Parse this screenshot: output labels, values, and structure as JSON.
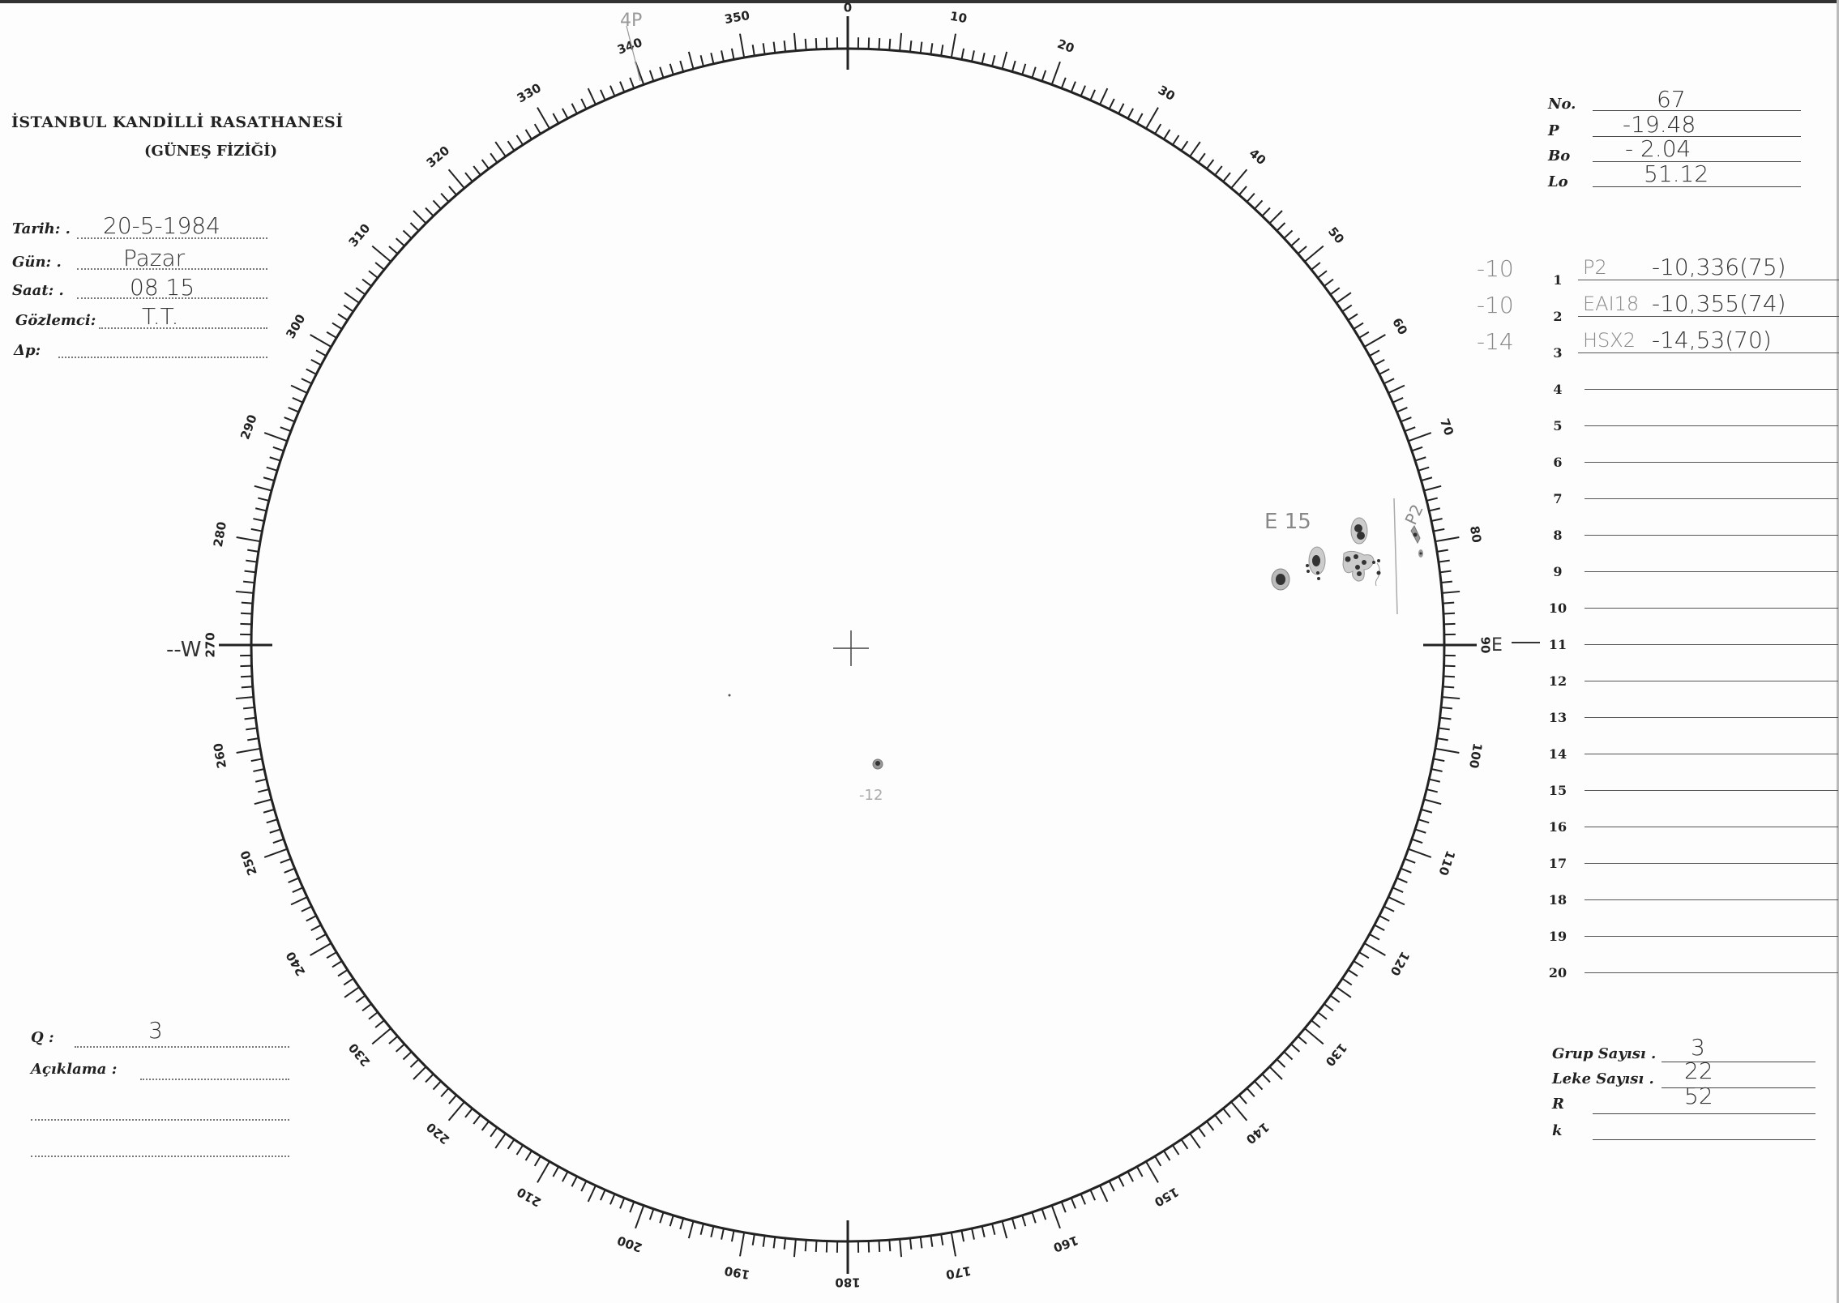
{
  "header": {
    "title": "İSTANBUL KANDİLLİ RASATHANESİ",
    "subtitle": "(GÜNEŞ FİZİĞİ)"
  },
  "observation": {
    "date_label": "Tarih: .",
    "date_value": "20-5-1984",
    "day_label": "Gün: .",
    "day_value": "Pazar",
    "time_label": "Saat: .",
    "time_value": "08 15",
    "observer_label": "Gözlemci:",
    "observer_value": "T.T.",
    "dp_label": "Δp:",
    "dp_value": ""
  },
  "parameters": {
    "no_label": "No.",
    "no_value": "67",
    "p_label": "P",
    "p_value": "-19.48",
    "bo_label": "Bo",
    "bo_value": "- 2.04",
    "lo_label": "Lo",
    "lo_value": "51.12"
  },
  "groups": [
    {
      "num": "1",
      "margin": "-10",
      "class": "P2",
      "value": "-10,336(75)"
    },
    {
      "num": "2",
      "margin": "-10",
      "class": "EAI18",
      "value": "-10,355(74)"
    },
    {
      "num": "3",
      "margin": "-14",
      "class": "HSX2",
      "value": "-14,53(70)"
    },
    {
      "num": "4"
    },
    {
      "num": "5"
    },
    {
      "num": "6"
    },
    {
      "num": "7"
    },
    {
      "num": "8"
    },
    {
      "num": "9"
    },
    {
      "num": "10"
    },
    {
      "num": "11"
    },
    {
      "num": "12"
    },
    {
      "num": "13"
    },
    {
      "num": "14"
    },
    {
      "num": "15"
    },
    {
      "num": "16"
    },
    {
      "num": "17"
    },
    {
      "num": "18"
    },
    {
      "num": "19"
    },
    {
      "num": "20"
    }
  ],
  "quality": {
    "q_label": "Q :",
    "q_value": "3",
    "remarks_label": "Açıklama :"
  },
  "summary": {
    "groups_label": "Grup Sayısı .",
    "groups_value": "3",
    "spots_label": "Leke Sayısı .",
    "spots_value": "22",
    "r_label": "R",
    "r_value": "52",
    "k_label": "k",
    "k_value": ""
  },
  "disk": {
    "scale_labels": [
      "0",
      "10",
      "20",
      "30",
      "40",
      "50",
      "60",
      "70",
      "80",
      "90",
      "100",
      "110",
      "120",
      "130",
      "140",
      "150",
      "160",
      "170",
      "180",
      "190",
      "200",
      "210",
      "220",
      "230",
      "240",
      "250",
      "260",
      "270",
      "280",
      "290",
      "300",
      "310",
      "320",
      "330",
      "340",
      "350"
    ],
    "west_label": "--W",
    "east_label": "E",
    "annotations": {
      "pole_mark": "4P",
      "group_e_label": "E 15",
      "group_p_label": "P2",
      "spot_label": "-12"
    }
  }
}
